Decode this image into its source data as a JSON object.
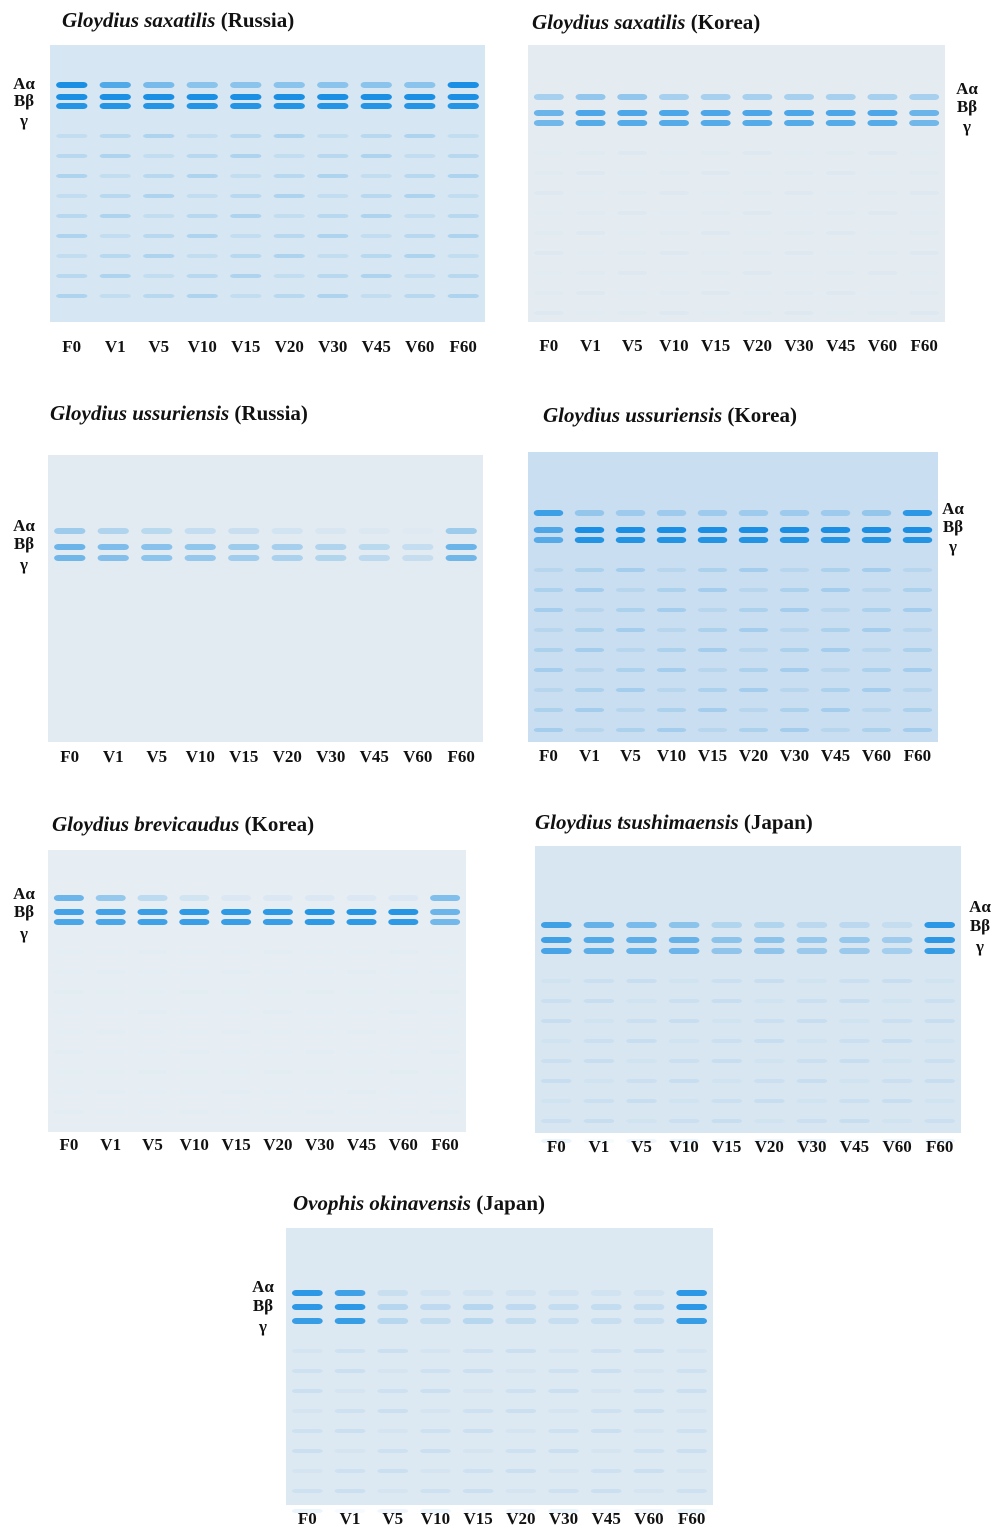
{
  "panels": [
    {
      "species": "Gloydius saxatilis",
      "location": "(Russia)",
      "chains": [
        "Aα",
        "Bβ",
        "γ"
      ],
      "lanes": [
        "F0",
        "V1",
        "V5",
        "V10",
        "V15",
        "V20",
        "V30",
        "V45",
        "V60",
        "F60"
      ]
    },
    {
      "species": "Gloydius saxatilis",
      "location": "(Korea)",
      "chains": [
        "Aα",
        "Bβ",
        "γ"
      ],
      "lanes": [
        "F0",
        "V1",
        "V5",
        "V10",
        "V15",
        "V20",
        "V30",
        "V45",
        "V60",
        "F60"
      ]
    },
    {
      "species": "Gloydius ussuriensis",
      "location": "(Russia)",
      "chains": [
        "Aα",
        "Bβ",
        "γ"
      ],
      "lanes": [
        "F0",
        "V1",
        "V5",
        "V10",
        "V15",
        "V20",
        "V30",
        "V45",
        "V60",
        "F60"
      ]
    },
    {
      "species": "Gloydius ussuriensis",
      "location": "(Korea)",
      "chains": [
        "Aα",
        "Bβ",
        "γ"
      ],
      "lanes": [
        "F0",
        "V1",
        "V5",
        "V10",
        "V15",
        "V20",
        "V30",
        "V45",
        "V60",
        "F60"
      ]
    },
    {
      "species": "Gloydius brevicaudus",
      "location": "(Korea)",
      "chains": [
        "Aα",
        "Bβ",
        "γ"
      ],
      "lanes": [
        "F0",
        "V1",
        "V5",
        "V10",
        "V15",
        "V20",
        "V30",
        "V45",
        "V60",
        "F60"
      ]
    },
    {
      "species": "Gloydius tsushimaensis",
      "location": "(Japan)",
      "chains": [
        "Aα",
        "Bβ",
        "γ"
      ],
      "lanes": [
        "F0",
        "V1",
        "V5",
        "V10",
        "V15",
        "V20",
        "V30",
        "V45",
        "V60",
        "F60"
      ]
    },
    {
      "species": "Ovophis okinavensis",
      "location": "(Japan)",
      "chains": [
        "Aα",
        "Bβ",
        "γ"
      ],
      "lanes": [
        "F0",
        "V1",
        "V5",
        "V10",
        "V15",
        "V20",
        "V30",
        "V45",
        "V60",
        "F60"
      ]
    }
  ]
}
